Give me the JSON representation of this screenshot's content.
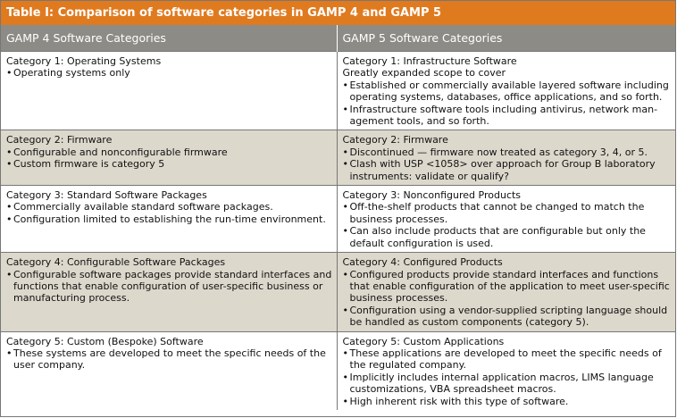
{
  "title": "Table I: Comparison of software categories in GAMP 4 and GAMP 5",
  "headers": [
    "GAMP 4 Software Categories",
    "GAMP 5 Software Categories"
  ],
  "rows": [
    {
      "shaded": false,
      "gamp4": {
        "title": "Category 1: Operating Systems",
        "intro": "",
        "bullets": [
          "Operating systems only"
        ]
      },
      "gamp5": {
        "title": "Category 1: Infrastructure Software",
        "intro": "Greatly expanded scope to cover",
        "bullets": [
          "Established or commercially available layered software including operating systems, databases, office applications, and so forth.",
          "Infrastructure software tools including antivirus, network man­agement tools, and so forth."
        ]
      }
    },
    {
      "shaded": true,
      "gamp4": {
        "title": "Category 2: Firmware",
        "intro": "",
        "bullets": [
          "Configurable and nonconfigurable firmware",
          "Custom firmware is category 5"
        ]
      },
      "gamp5": {
        "title": "Category 2: Firmware",
        "intro": "",
        "bullets": [
          "Discontinued — firmware now treated as category 3, 4, or 5.",
          "Clash with USP <1058> over approach for Group B laboratory instruments: validate or qualify?"
        ]
      }
    },
    {
      "shaded": false,
      "gamp4": {
        "title": "Category 3: Standard Software Packages",
        "intro": "",
        "bullets": [
          "Commercially available standard software packages.",
          "Configuration limited to establishing the run-time environment."
        ]
      },
      "gamp5": {
        "title": "Category 3: Nonconfigured Products",
        "intro": "",
        "bullets": [
          "Off-the-shelf products that cannot be changed to match the business processes.",
          "Can also include products that are configurable but only the default configuration is used."
        ]
      }
    },
    {
      "shaded": true,
      "gamp4": {
        "title": "Category 4: Configurable Software Packages",
        "intro": "",
        "bullets": [
          "Configurable software packages provide standard interfaces and functions that enable configuration of user-specific business or manufacturing process."
        ]
      },
      "gamp5": {
        "title": "Category 4: Configured Products",
        "intro": "",
        "bullets": [
          "Configured products provide standard interfaces and functions that enable configuration of the application to meet user-spe­cific business processes.",
          "Configuration using a vendor-supplied scripting language should be handled as custom components (category 5)."
        ]
      }
    },
    {
      "shaded": false,
      "gamp4": {
        "title": "Category 5: Custom (Bespoke) Software",
        "intro": "",
        "bullets": [
          "These systems are developed to meet the specific needs of the user company."
        ]
      },
      "gamp5": {
        "title": "Category 5: Custom Applications",
        "intro": "",
        "bullets": [
          "These applications are developed to meet the specific needs of the regulated company.",
          "Implicitly includes internal application macros, LIMS language customizations, VBA spreadsheet macros.",
          "High inherent risk with this type of software."
        ]
      }
    }
  ],
  "colors": {
    "title_bg": "#e07a1f",
    "header_bg": "#8c8b86",
    "shade_bg": "#ddd8cc"
  }
}
